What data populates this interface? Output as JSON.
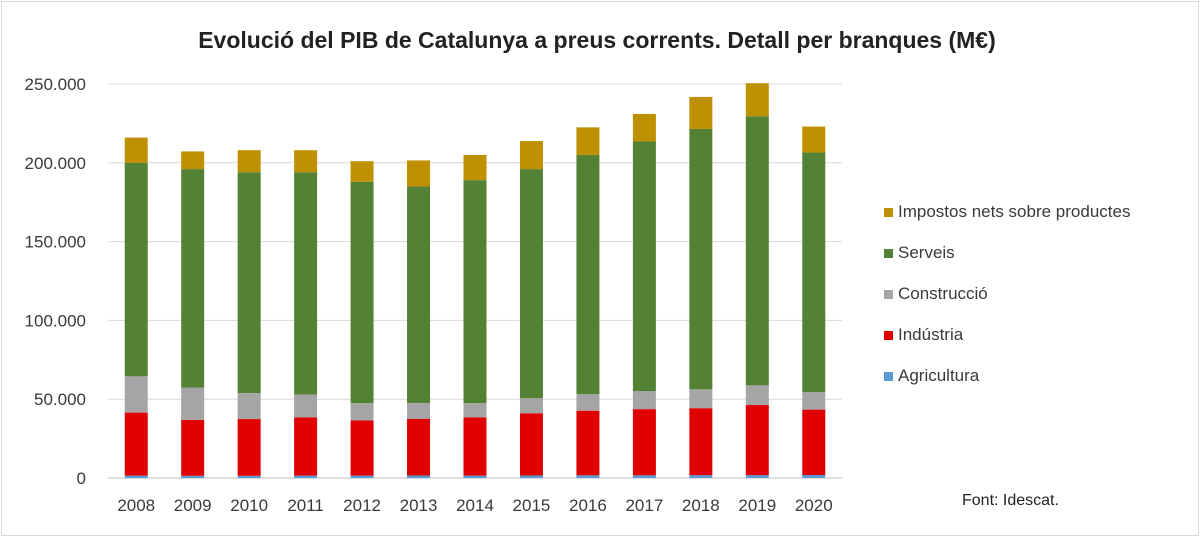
{
  "chart_data": {
    "type": "bar",
    "stacked": true,
    "title": "Evolució del PIB de Catalunya a preus corrents. Detall per branques (M€)",
    "xlabel": "",
    "ylabel": "",
    "ylim": [
      0,
      250000
    ],
    "yticks": [
      0,
      50000,
      100000,
      150000,
      200000,
      250000
    ],
    "ytick_labels": [
      "0",
      "50.000",
      "100.000",
      "150.000",
      "200.000",
      "250.000"
    ],
    "categories": [
      "2008",
      "2009",
      "2010",
      "2011",
      "2012",
      "2013",
      "2014",
      "2015",
      "2016",
      "2017",
      "2018",
      "2019",
      "2020"
    ],
    "series": [
      {
        "name": "Agricultura",
        "color": "#5b9bd5",
        "values": [
          1500,
          1400,
          1400,
          1500,
          1500,
          1600,
          1500,
          1600,
          1700,
          1700,
          1800,
          1800,
          1900
        ]
      },
      {
        "name": "Indústria",
        "color": "#e00000",
        "values": [
          40000,
          35500,
          36000,
          37000,
          35000,
          36000,
          37000,
          39500,
          41000,
          42000,
          42500,
          44500,
          41500
        ]
      },
      {
        "name": "Construcció",
        "color": "#a5a5a5",
        "values": [
          23000,
          20500,
          16500,
          14500,
          11000,
          10000,
          9000,
          9500,
          10500,
          11500,
          12000,
          12500,
          11100
        ]
      },
      {
        "name": "Serveis",
        "color": "#548235",
        "values": [
          135500,
          138600,
          140100,
          141000,
          140500,
          137400,
          141500,
          145400,
          151800,
          158300,
          165200,
          170700,
          152000
        ]
      },
      {
        "name": "Impostos nets sobre productes",
        "color": "#bf9000",
        "values": [
          16000,
          11200,
          14000,
          14000,
          13000,
          16500,
          16000,
          17800,
          17500,
          17500,
          20300,
          21000,
          16500
        ]
      }
    ],
    "legend_position": "right",
    "legend_order": [
      "Impostos nets sobre productes",
      "Serveis",
      "Construcció",
      "Indústria",
      "Agricultura"
    ],
    "grid": "horizontal"
  },
  "source": "Font: Idescat."
}
